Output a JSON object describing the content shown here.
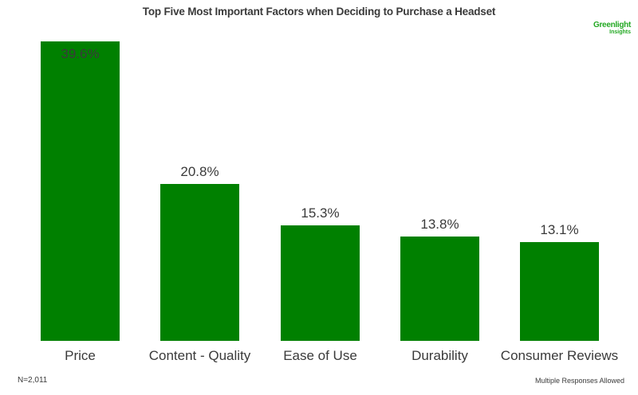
{
  "header": {
    "title": "Top Five Most Important Factors when Deciding to Purchase a Headset",
    "logo_line1": "Greenlight",
    "logo_line2": "Insights"
  },
  "footer": {
    "sample_size": "N=2,011",
    "note": "Multiple Responses Allowed"
  },
  "colors": {
    "bar": "#008000",
    "text": "#3a3a3a",
    "logo": "#22a822"
  },
  "chart_data": {
    "type": "bar",
    "title": "Top Five Most Important Factors when Deciding to Purchase a Headset",
    "categories": [
      "Price",
      "Content - Quality",
      "Ease of Use",
      "Durability",
      "Consumer Reviews"
    ],
    "values": [
      39.6,
      20.8,
      15.3,
      13.8,
      13.1
    ],
    "value_labels": [
      "39.6%",
      "20.8%",
      "15.3%",
      "13.8%",
      "13.1%"
    ],
    "unit": "%",
    "xlabel": "",
    "ylabel": "",
    "ylim": [
      0,
      39.6
    ],
    "grid": false,
    "legend": "none",
    "annotations": [
      "N=2,011",
      "Multiple Responses Allowed"
    ]
  }
}
